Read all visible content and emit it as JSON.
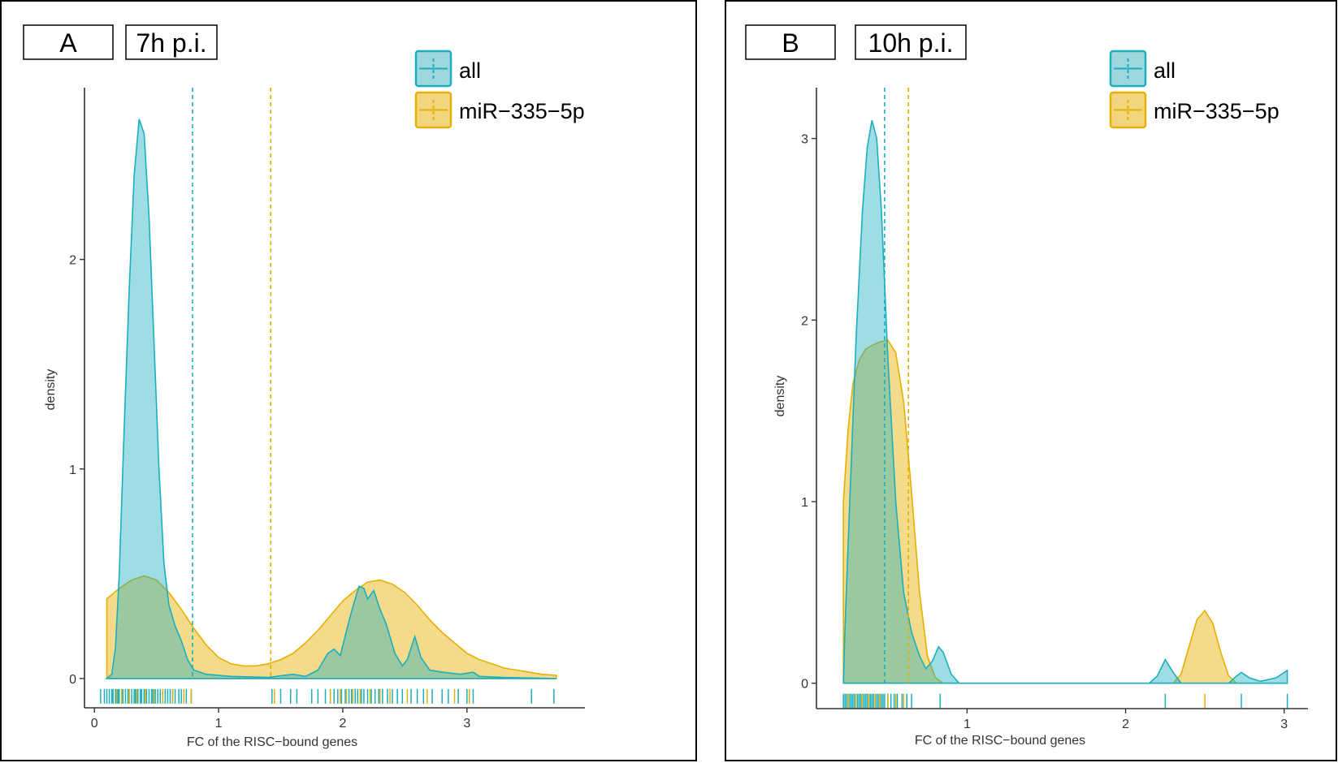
{
  "colors": {
    "all": "#1AAFBF",
    "all_fill": "#9ED7DE",
    "mir": "#E6B000",
    "mir_fill": "#F2D67F",
    "axis": "#333333"
  },
  "chart_data": [
    {
      "type": "density",
      "panel_label": "A",
      "timepoint": "7h p.i.",
      "xlabel": "FC of the RISC−bound genes",
      "ylabel": "density",
      "xlim": [
        -0.08,
        3.95
      ],
      "ylim": [
        -0.14,
        2.82
      ],
      "xticks": [
        0,
        1,
        2,
        3
      ],
      "xtick_labels": [
        "0",
        "1",
        "2",
        "3"
      ],
      "yticks": [
        0,
        1,
        2
      ],
      "ytick_labels": [
        "0",
        "1",
        "2"
      ],
      "legend": {
        "position": "top-right",
        "entries": [
          "all",
          "miR−335−5p"
        ]
      },
      "series": [
        {
          "name": "all",
          "mean_line": 0.79,
          "curve": [
            [
              0.1,
              0
            ],
            [
              0.14,
              0.02
            ],
            [
              0.17,
              0.15
            ],
            [
              0.2,
              0.5
            ],
            [
              0.24,
              1.2
            ],
            [
              0.28,
              1.85
            ],
            [
              0.32,
              2.4
            ],
            [
              0.36,
              2.67
            ],
            [
              0.4,
              2.6
            ],
            [
              0.44,
              2.2
            ],
            [
              0.48,
              1.6
            ],
            [
              0.52,
              1.0
            ],
            [
              0.56,
              0.55
            ],
            [
              0.6,
              0.35
            ],
            [
              0.65,
              0.25
            ],
            [
              0.7,
              0.18
            ],
            [
              0.75,
              0.09
            ],
            [
              0.8,
              0.04
            ],
            [
              0.9,
              0.02
            ],
            [
              1.1,
              0.01
            ],
            [
              1.4,
              0.005
            ],
            [
              1.6,
              0.02
            ],
            [
              1.7,
              0.01
            ],
            [
              1.8,
              0.04
            ],
            [
              1.88,
              0.12
            ],
            [
              1.93,
              0.14
            ],
            [
              1.98,
              0.11
            ],
            [
              2.04,
              0.25
            ],
            [
              2.08,
              0.34
            ],
            [
              2.13,
              0.44
            ],
            [
              2.17,
              0.43
            ],
            [
              2.2,
              0.38
            ],
            [
              2.25,
              0.42
            ],
            [
              2.3,
              0.33
            ],
            [
              2.35,
              0.26
            ],
            [
              2.42,
              0.12
            ],
            [
              2.48,
              0.06
            ],
            [
              2.52,
              0.09
            ],
            [
              2.58,
              0.2
            ],
            [
              2.63,
              0.1
            ],
            [
              2.7,
              0.04
            ],
            [
              2.8,
              0.03
            ],
            [
              2.95,
              0.02
            ],
            [
              3.05,
              0.03
            ],
            [
              3.1,
              0.01
            ],
            [
              3.3,
              0.005
            ],
            [
              3.72,
              0
            ]
          ],
          "rug": [
            0.05,
            0.08,
            0.1,
            0.12,
            0.14,
            0.15,
            0.17,
            0.19,
            0.2,
            0.22,
            0.23,
            0.25,
            0.27,
            0.28,
            0.3,
            0.32,
            0.33,
            0.35,
            0.37,
            0.38,
            0.4,
            0.42,
            0.44,
            0.46,
            0.47,
            0.49,
            0.51,
            0.53,
            0.55,
            0.57,
            0.59,
            0.61,
            0.63,
            0.65,
            0.68,
            0.7,
            0.74,
            0.78,
            1.43,
            1.5,
            1.58,
            1.63,
            1.75,
            1.8,
            1.86,
            1.9,
            1.93,
            1.96,
            1.99,
            2.02,
            2.05,
            2.07,
            2.1,
            2.12,
            2.15,
            2.17,
            2.2,
            2.23,
            2.26,
            2.29,
            2.32,
            2.36,
            2.4,
            2.44,
            2.48,
            2.55,
            2.6,
            2.65,
            2.72,
            2.8,
            2.85,
            2.93,
            3.0,
            3.05,
            3.52,
            3.7
          ]
        },
        {
          "name": "miR−335−5p",
          "mean_line": 1.42,
          "curve": [
            [
              0.1,
              0.38
            ],
            [
              0.2,
              0.43
            ],
            [
              0.3,
              0.47
            ],
            [
              0.4,
              0.49
            ],
            [
              0.5,
              0.47
            ],
            [
              0.6,
              0.41
            ],
            [
              0.7,
              0.33
            ],
            [
              0.8,
              0.24
            ],
            [
              0.9,
              0.16
            ],
            [
              1.0,
              0.1
            ],
            [
              1.1,
              0.07
            ],
            [
              1.2,
              0.06
            ],
            [
              1.3,
              0.06
            ],
            [
              1.4,
              0.07
            ],
            [
              1.5,
              0.09
            ],
            [
              1.6,
              0.12
            ],
            [
              1.7,
              0.17
            ],
            [
              1.8,
              0.23
            ],
            [
              1.9,
              0.3
            ],
            [
              2.0,
              0.37
            ],
            [
              2.1,
              0.42
            ],
            [
              2.2,
              0.46
            ],
            [
              2.3,
              0.47
            ],
            [
              2.4,
              0.45
            ],
            [
              2.5,
              0.41
            ],
            [
              2.6,
              0.35
            ],
            [
              2.7,
              0.28
            ],
            [
              2.8,
              0.22
            ],
            [
              2.9,
              0.17
            ],
            [
              3.0,
              0.12
            ],
            [
              3.1,
              0.09
            ],
            [
              3.2,
              0.07
            ],
            [
              3.3,
              0.05
            ],
            [
              3.4,
              0.04
            ],
            [
              3.5,
              0.03
            ],
            [
              3.6,
              0.02
            ],
            [
              3.72,
              0.015
            ]
          ],
          "rug": [
            0.18,
            0.22,
            0.28,
            0.34,
            0.41,
            0.48,
            0.55,
            0.63,
            0.72,
            0.78,
            1.45,
            1.9,
            1.98,
            2.03,
            2.08,
            2.14,
            2.22,
            2.3,
            2.38,
            2.52,
            2.68,
            2.9,
            3.02
          ]
        }
      ]
    },
    {
      "type": "density",
      "panel_label": "B",
      "timepoint": "10h p.i.",
      "xlabel": "FC of the RISC−bound genes",
      "ylabel": "density",
      "xlim": [
        0.05,
        3.15
      ],
      "ylim": [
        -0.14,
        3.28
      ],
      "xticks": [
        1,
        2,
        3
      ],
      "xtick_labels": [
        "1",
        "2",
        "3"
      ],
      "yticks": [
        0,
        1,
        2,
        3
      ],
      "ytick_labels": [
        "0",
        "1",
        "2",
        "3"
      ],
      "legend": {
        "position": "top-right",
        "entries": [
          "all",
          "miR−335−5p"
        ]
      },
      "series": [
        {
          "name": "all",
          "mean_line": 0.48,
          "curve": [
            [
              0.22,
              0
            ],
            [
              0.23,
              0.3
            ],
            [
              0.26,
              1.0
            ],
            [
              0.3,
              1.9
            ],
            [
              0.34,
              2.6
            ],
            [
              0.37,
              2.95
            ],
            [
              0.4,
              3.1
            ],
            [
              0.43,
              3.0
            ],
            [
              0.46,
              2.6
            ],
            [
              0.5,
              1.8
            ],
            [
              0.55,
              1.0
            ],
            [
              0.6,
              0.5
            ],
            [
              0.65,
              0.28
            ],
            [
              0.7,
              0.15
            ],
            [
              0.74,
              0.08
            ],
            [
              0.78,
              0.12
            ],
            [
              0.82,
              0.2
            ],
            [
              0.85,
              0.17
            ],
            [
              0.9,
              0.05
            ],
            [
              0.95,
              0
            ],
            [
              2.15,
              0
            ],
            [
              2.2,
              0.04
            ],
            [
              2.25,
              0.13
            ],
            [
              2.3,
              0.06
            ],
            [
              2.35,
              0
            ],
            [
              2.65,
              0
            ],
            [
              2.7,
              0.04
            ],
            [
              2.73,
              0.06
            ],
            [
              2.78,
              0.03
            ],
            [
              2.85,
              0.01
            ],
            [
              2.95,
              0.03
            ],
            [
              3.02,
              0.07
            ],
            [
              3.02,
              0
            ]
          ],
          "rug": [
            0.22,
            0.23,
            0.24,
            0.25,
            0.26,
            0.27,
            0.28,
            0.29,
            0.3,
            0.31,
            0.32,
            0.33,
            0.34,
            0.35,
            0.36,
            0.37,
            0.38,
            0.39,
            0.4,
            0.41,
            0.42,
            0.43,
            0.44,
            0.45,
            0.46,
            0.47,
            0.48,
            0.5,
            0.52,
            0.54,
            0.56,
            0.59,
            0.62,
            0.65,
            0.83,
            2.25,
            2.73,
            3.02
          ]
        },
        {
          "name": "miR−335−5p",
          "mean_line": 0.63,
          "curve": [
            [
              0.22,
              0
            ],
            [
              0.22,
              1.0
            ],
            [
              0.25,
              1.4
            ],
            [
              0.28,
              1.65
            ],
            [
              0.32,
              1.78
            ],
            [
              0.36,
              1.84
            ],
            [
              0.4,
              1.86
            ],
            [
              0.45,
              1.88
            ],
            [
              0.5,
              1.89
            ],
            [
              0.55,
              1.82
            ],
            [
              0.6,
              1.55
            ],
            [
              0.65,
              1.05
            ],
            [
              0.7,
              0.5
            ],
            [
              0.75,
              0.15
            ],
            [
              0.8,
              0.03
            ],
            [
              0.85,
              0
            ],
            [
              2.3,
              0
            ],
            [
              2.35,
              0.05
            ],
            [
              2.4,
              0.2
            ],
            [
              2.45,
              0.35
            ],
            [
              2.5,
              0.4
            ],
            [
              2.55,
              0.33
            ],
            [
              2.6,
              0.17
            ],
            [
              2.65,
              0.04
            ],
            [
              2.7,
              0
            ]
          ],
          "rug": [
            0.25,
            0.3,
            0.34,
            0.38,
            0.42,
            0.45,
            0.5,
            0.55,
            0.6,
            2.5
          ]
        }
      ]
    }
  ]
}
